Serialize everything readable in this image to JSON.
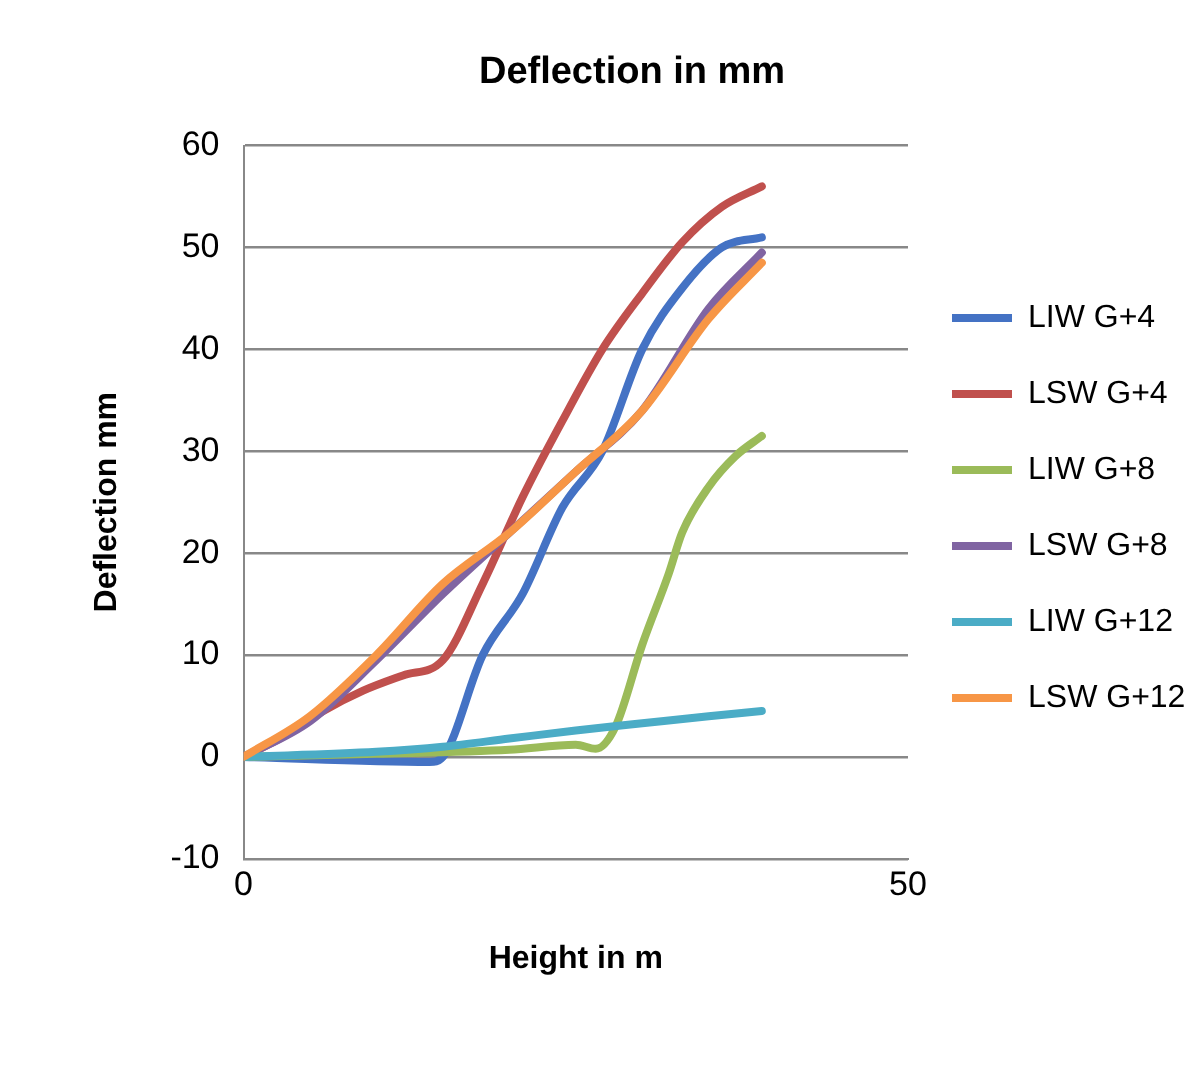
{
  "chart_data": {
    "type": "line",
    "title": "Deflection in mm",
    "xlabel": "Height in m",
    "ylabel": "Deflection mm",
    "xlim": [
      0,
      50
    ],
    "xticks": [
      0,
      50
    ],
    "ylim": [
      -10,
      60
    ],
    "yticks": [
      -10,
      0,
      10,
      20,
      30,
      40,
      50,
      60
    ],
    "grid": "y",
    "legend": "right",
    "marker": "none",
    "line_style": "solid",
    "series": [
      {
        "name": "LIW G+4",
        "color": "#4472c4",
        "x": [
          0,
          14,
          15,
          18,
          21,
          24,
          27,
          30,
          33,
          36,
          39
        ],
        "values": [
          0,
          -0.5,
          0,
          10,
          16,
          24.5,
          30,
          40,
          46,
          50,
          51
        ]
      },
      {
        "name": "LSW G+4",
        "color": "#c0504d",
        "x": [
          0,
          3,
          6,
          9,
          12,
          15,
          18,
          21,
          24,
          27,
          30,
          33,
          36,
          39
        ],
        "values": [
          0,
          2,
          4.5,
          6.5,
          8,
          9.5,
          17,
          25.5,
          33,
          40,
          45.5,
          50.5,
          54,
          56
        ]
      },
      {
        "name": "LIW G+8",
        "color": "#9bbb59",
        "x": [
          0,
          10,
          20,
          25,
          26.5,
          28,
          30,
          32,
          33,
          35,
          37,
          39
        ],
        "values": [
          0,
          0.3,
          0.7,
          1.2,
          0.8,
          3,
          11,
          18,
          22,
          26.5,
          29.5,
          31.5
        ]
      },
      {
        "name": "LSW G+8",
        "color": "#8064a2",
        "x": [
          0,
          5,
          10,
          15,
          20,
          25,
          30,
          35,
          39
        ],
        "values": [
          0,
          3.5,
          9.5,
          16,
          22,
          28,
          34,
          44,
          49.5
        ]
      },
      {
        "name": "LIW G+12",
        "color": "#4bacc6",
        "x": [
          0,
          10,
          15,
          20,
          25,
          30,
          35,
          39
        ],
        "values": [
          0,
          0.5,
          1,
          1.8,
          2.6,
          3.3,
          4,
          4.5
        ]
      },
      {
        "name": "LSW G+12",
        "color": "#f79646",
        "x": [
          0,
          5,
          10,
          15,
          20,
          25,
          30,
          35,
          39
        ],
        "values": [
          0,
          4,
          10,
          17,
          22,
          28,
          34,
          43,
          48.5
        ]
      }
    ]
  }
}
